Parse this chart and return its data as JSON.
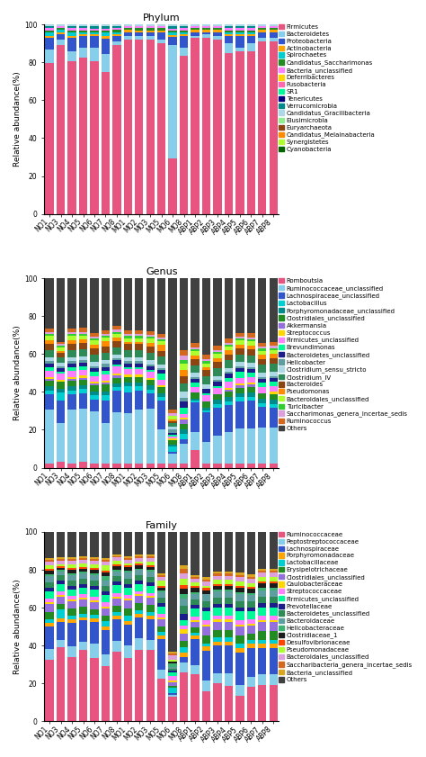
{
  "x_labels": [
    "NO1",
    "NO3",
    "NO4",
    "NO5",
    "NO6",
    "NO7",
    "NO8",
    "MO1",
    "MO2",
    "MO3",
    "MO5",
    "MO6",
    "MO8",
    "ABP1",
    "ABP2",
    "ABP3",
    "ABP4",
    "ABP5",
    "ABP6",
    "ABP7",
    "ABP8"
  ],
  "phylum": {
    "title": "Phylum",
    "categories": [
      "Firmicutes",
      "Bacteroidetes",
      "Proteobacteria",
      "Actinobacteria",
      "Spirochaetes",
      "Candidatus_Saccharimonas",
      "Bacteria_unclassified",
      "Deferribacteres",
      "Fusobacteria",
      "SR1",
      "Tenericutes",
      "Verrucomicrobia",
      "Candidatus_Gracilibacteria",
      "Elusimicrobia",
      "Euryarchaeota",
      "Candidatus_Melainabacteria",
      "Synergistetes",
      "Cyanobacteria"
    ],
    "colors": [
      "#E75480",
      "#87CEEB",
      "#3355CC",
      "#FFA500",
      "#00CED1",
      "#228B22",
      "#FF80FF",
      "#FFD700",
      "#FF69B4",
      "#00FA9A",
      "#000080",
      "#008B8B",
      "#ADD8E6",
      "#90EE90",
      "#8B4513",
      "#FF8C00",
      "#ADFF2F",
      "#006400"
    ],
    "data": [
      [
        78,
        89,
        80,
        81,
        78,
        72,
        89,
        92,
        91,
        91,
        89,
        27,
        82,
        93,
        93,
        92,
        84,
        84,
        85,
        91,
        91
      ],
      [
        7,
        3,
        5,
        5,
        7,
        9,
        2,
        2,
        2,
        2,
        2,
        55,
        4,
        1,
        2,
        2,
        5,
        2,
        4,
        2,
        2
      ],
      [
        6,
        3,
        7,
        6,
        6,
        8,
        3,
        2,
        2,
        2,
        4,
        4,
        6,
        2,
        1,
        2,
        4,
        6,
        4,
        3,
        3
      ],
      [
        1,
        1,
        1,
        1,
        1,
        1,
        1,
        1,
        1,
        1,
        1,
        1,
        1,
        1,
        1,
        1,
        1,
        1,
        1,
        1,
        1
      ],
      [
        2,
        1,
        2,
        1,
        1,
        2,
        1,
        0,
        0,
        0,
        0,
        1,
        1,
        0,
        0,
        0,
        1,
        1,
        1,
        0,
        0
      ],
      [
        1,
        1,
        1,
        1,
        1,
        1,
        1,
        1,
        1,
        1,
        1,
        1,
        1,
        1,
        1,
        1,
        1,
        1,
        1,
        1,
        1
      ],
      [
        1,
        1,
        1,
        1,
        1,
        1,
        1,
        1,
        1,
        1,
        1,
        1,
        1,
        1,
        1,
        1,
        1,
        1,
        1,
        1,
        1
      ],
      [
        0,
        0,
        0,
        0,
        0,
        0,
        0,
        0,
        0,
        0,
        0,
        0,
        0,
        0,
        0,
        0,
        0,
        0,
        0,
        0,
        0
      ],
      [
        0,
        0,
        0,
        0,
        0,
        0,
        0,
        0,
        0,
        0,
        0,
        0,
        0,
        0,
        0,
        0,
        0,
        0,
        0,
        0,
        0
      ],
      [
        0,
        0,
        0,
        0,
        0,
        0,
        0,
        0,
        0,
        0,
        0,
        0,
        0,
        0,
        0,
        0,
        0,
        0,
        0,
        0,
        0
      ],
      [
        0,
        0,
        0,
        0,
        0,
        0,
        0,
        0,
        0,
        0,
        0,
        0,
        0,
        0,
        0,
        0,
        0,
        0,
        0,
        0,
        0
      ],
      [
        1,
        0,
        1,
        1,
        1,
        1,
        1,
        0,
        0,
        0,
        0,
        1,
        1,
        0,
        0,
        0,
        1,
        1,
        1,
        0,
        0
      ],
      [
        1,
        1,
        1,
        1,
        1,
        1,
        1,
        1,
        1,
        1,
        1,
        1,
        1,
        1,
        1,
        1,
        1,
        1,
        1,
        1,
        1
      ],
      [
        0,
        0,
        0,
        0,
        0,
        0,
        0,
        0,
        0,
        0,
        0,
        0,
        0,
        0,
        0,
        0,
        0,
        0,
        0,
        0,
        0
      ],
      [
        0,
        0,
        0,
        0,
        0,
        0,
        0,
        0,
        0,
        0,
        0,
        0,
        0,
        0,
        0,
        0,
        0,
        0,
        0,
        0,
        0
      ],
      [
        0,
        0,
        0,
        0,
        0,
        0,
        0,
        0,
        0,
        0,
        0,
        0,
        0,
        0,
        0,
        0,
        0,
        0,
        0,
        0,
        0
      ],
      [
        0,
        0,
        0,
        0,
        0,
        0,
        0,
        0,
        0,
        0,
        0,
        0,
        0,
        0,
        0,
        0,
        0,
        0,
        0,
        0,
        0
      ],
      [
        0,
        0,
        0,
        0,
        0,
        0,
        0,
        0,
        0,
        0,
        0,
        0,
        0,
        0,
        0,
        0,
        0,
        0,
        0,
        0,
        0
      ]
    ]
  },
  "genus": {
    "title": "Genus",
    "categories": [
      "Romboutsia",
      "Ruminococcaceae_unclassified",
      "Lachnospiraceae_unclassified",
      "Lactobacillus",
      "Porphyromonadaceae_unclassified",
      "Clostridiales_unclassified",
      "Akkermansia",
      "Streptococcus",
      "Firmicutes_unclassified",
      "Brevundimonas",
      "Bacteroidetes_unclassified",
      "Helicobacter",
      "Clostridium_sensu_stricto",
      "Clostridium_IV",
      "Bacteroides",
      "Pseudomonas",
      "Bacteroidales_unclassified",
      "Turicibacter",
      "Saccharimonas_genera_incertae_sedis",
      "Ruminococcus",
      "Others"
    ],
    "colors": [
      "#E75480",
      "#87CEEB",
      "#3355CC",
      "#00CED1",
      "#008B8B",
      "#228B22",
      "#9370DB",
      "#FFD700",
      "#FF80FF",
      "#00FA9A",
      "#1C1C8A",
      "#5F9EA0",
      "#ADD8E6",
      "#2E8B57",
      "#8B4513",
      "#FF8C00",
      "#ADFF2F",
      "#32CD32",
      "#DDA0DD",
      "#D2691E",
      "#404040"
    ],
    "data": [
      [
        2,
        3,
        2,
        3,
        2,
        2,
        2,
        2,
        2,
        2,
        2,
        2,
        2,
        9,
        2,
        2,
        2,
        2,
        2,
        2,
        2
      ],
      [
        28,
        21,
        28,
        28,
        27,
        22,
        27,
        26,
        28,
        28,
        18,
        5,
        10,
        9,
        10,
        14,
        16,
        18,
        18,
        18,
        18
      ],
      [
        8,
        12,
        8,
        8,
        6,
        12,
        11,
        11,
        10,
        8,
        15,
        1,
        2,
        15,
        14,
        14,
        14,
        14,
        14,
        10,
        10
      ],
      [
        2,
        4,
        2,
        2,
        2,
        3,
        2,
        3,
        2,
        2,
        2,
        3,
        3,
        1,
        1,
        2,
        2,
        2,
        2,
        2,
        2
      ],
      [
        2,
        2,
        2,
        2,
        2,
        2,
        2,
        2,
        2,
        2,
        2,
        1,
        2,
        1,
        1,
        2,
        2,
        2,
        2,
        2,
        2
      ],
      [
        3,
        4,
        3,
        3,
        3,
        4,
        3,
        3,
        3,
        3,
        3,
        2,
        3,
        3,
        3,
        3,
        3,
        3,
        3,
        3,
        3
      ],
      [
        1,
        0,
        1,
        1,
        1,
        1,
        1,
        0,
        0,
        0,
        0,
        0,
        2,
        0,
        0,
        0,
        1,
        1,
        1,
        0,
        0
      ],
      [
        1,
        1,
        1,
        1,
        1,
        1,
        1,
        1,
        1,
        1,
        1,
        1,
        1,
        0,
        0,
        0,
        1,
        1,
        1,
        0,
        1
      ],
      [
        3,
        3,
        3,
        3,
        3,
        3,
        4,
        3,
        3,
        3,
        3,
        1,
        2,
        3,
        3,
        3,
        3,
        3,
        3,
        3,
        3
      ],
      [
        2,
        1,
        2,
        2,
        2,
        2,
        1,
        1,
        1,
        1,
        3,
        1,
        3,
        2,
        1,
        1,
        2,
        3,
        2,
        2,
        2
      ],
      [
        2,
        2,
        2,
        2,
        2,
        2,
        2,
        2,
        2,
        2,
        2,
        1,
        3,
        2,
        2,
        2,
        2,
        2,
        2,
        2,
        2
      ],
      [
        1,
        1,
        1,
        1,
        1,
        2,
        1,
        1,
        1,
        1,
        1,
        2,
        2,
        1,
        0,
        1,
        1,
        1,
        1,
        1,
        1
      ],
      [
        2,
        2,
        2,
        2,
        2,
        2,
        2,
        2,
        2,
        2,
        2,
        1,
        3,
        2,
        2,
        2,
        2,
        2,
        2,
        2,
        2
      ],
      [
        4,
        3,
        4,
        4,
        4,
        4,
        4,
        4,
        4,
        4,
        4,
        2,
        4,
        4,
        4,
        4,
        4,
        4,
        4,
        4,
        4
      ],
      [
        3,
        2,
        3,
        3,
        3,
        3,
        3,
        3,
        3,
        3,
        3,
        1,
        4,
        3,
        3,
        3,
        3,
        3,
        3,
        3,
        3
      ],
      [
        2,
        1,
        2,
        2,
        2,
        3,
        2,
        1,
        1,
        2,
        3,
        1,
        3,
        2,
        1,
        2,
        2,
        2,
        2,
        2,
        2
      ],
      [
        2,
        2,
        2,
        2,
        2,
        2,
        2,
        2,
        2,
        2,
        2,
        2,
        3,
        2,
        2,
        2,
        2,
        2,
        2,
        2,
        2
      ],
      [
        1,
        1,
        1,
        1,
        1,
        1,
        1,
        1,
        1,
        1,
        1,
        0,
        2,
        1,
        1,
        1,
        1,
        1,
        1,
        1,
        1
      ],
      [
        1,
        1,
        1,
        1,
        1,
        1,
        1,
        1,
        1,
        1,
        1,
        1,
        2,
        1,
        1,
        1,
        1,
        1,
        1,
        1,
        1
      ],
      [
        2,
        1,
        2,
        2,
        2,
        2,
        2,
        2,
        2,
        2,
        2,
        2,
        3,
        2,
        2,
        2,
        2,
        2,
        2,
        2,
        2
      ],
      [
        26,
        34,
        26,
        26,
        28,
        28,
        25,
        27,
        27,
        27,
        29,
        68,
        36,
        33,
        36,
        34,
        31,
        28,
        28,
        32,
        32
      ]
    ]
  },
  "family": {
    "title": "Family",
    "categories": [
      "Ruminococcaceae",
      "Peptostreptococcaceae",
      "Lachnospiraceae",
      "Porphyromonadaceae",
      "Lactobacillaceae",
      "Erysipelotrichaceae",
      "Clostridiales_unclassified",
      "Caulobacteraceae",
      "Streptococcaceae",
      "Firmicutes_unclassified",
      "Prevotellaceae",
      "Bacteroidetes_unclassified",
      "Bacteroidaceae",
      "Helicobacteraceae",
      "Clostridiaceae_1",
      "Desulfovibrionaceae",
      "Pseudomonadaceae",
      "Bacteroidales_unclassified",
      "Saccharibacteria_genera_incertae_sedis",
      "Bacteria_unclassified",
      "Others"
    ],
    "colors": [
      "#E75480",
      "#87CEEB",
      "#3355CC",
      "#FFA500",
      "#00CED1",
      "#228B22",
      "#9370DB",
      "#FFD700",
      "#FF80FF",
      "#00FA9A",
      "#1C1C8A",
      "#2E8B57",
      "#5F9EA0",
      "#3CB371",
      "#1C1C1C",
      "#FF4500",
      "#ADFF2F",
      "#DDA0DD",
      "#D2691E",
      "#DAA520",
      "#404040"
    ],
    "data": [
      [
        33,
        41,
        36,
        41,
        35,
        30,
        41,
        34,
        41,
        41,
        24,
        13,
        25,
        25,
        14,
        19,
        18,
        12,
        17,
        17,
        17
      ],
      [
        6,
        4,
        6,
        5,
        8,
        6,
        6,
        7,
        7,
        6,
        5,
        1,
        5,
        5,
        5,
        5,
        6,
        5,
        5,
        5,
        5
      ],
      [
        12,
        10,
        13,
        12,
        12,
        13,
        13,
        11,
        12,
        12,
        17,
        1,
        3,
        14,
        14,
        14,
        14,
        15,
        14,
        12,
        12
      ],
      [
        2,
        2,
        2,
        2,
        2,
        2,
        2,
        2,
        2,
        2,
        2,
        0,
        2,
        2,
        2,
        2,
        2,
        2,
        2,
        2,
        2
      ],
      [
        2,
        5,
        2,
        2,
        2,
        3,
        2,
        3,
        2,
        2,
        2,
        3,
        3,
        1,
        1,
        2,
        2,
        2,
        2,
        2,
        2
      ],
      [
        4,
        3,
        4,
        4,
        3,
        3,
        4,
        4,
        4,
        4,
        3,
        1,
        3,
        3,
        4,
        4,
        4,
        4,
        3,
        4,
        4
      ],
      [
        4,
        4,
        4,
        4,
        4,
        4,
        4,
        4,
        4,
        4,
        4,
        2,
        4,
        3,
        4,
        4,
        4,
        4,
        4,
        4,
        4
      ],
      [
        1,
        1,
        1,
        1,
        1,
        1,
        1,
        1,
        1,
        1,
        1,
        1,
        2,
        1,
        1,
        1,
        1,
        1,
        1,
        1,
        1
      ],
      [
        2,
        2,
        2,
        2,
        2,
        2,
        2,
        2,
        2,
        2,
        2,
        2,
        2,
        2,
        2,
        2,
        2,
        2,
        2,
        2,
        2
      ],
      [
        4,
        4,
        4,
        4,
        4,
        4,
        5,
        4,
        4,
        4,
        4,
        2,
        3,
        4,
        4,
        4,
        4,
        4,
        4,
        4,
        4
      ],
      [
        2,
        2,
        2,
        2,
        2,
        2,
        2,
        2,
        2,
        2,
        2,
        1,
        3,
        2,
        2,
        2,
        2,
        2,
        2,
        2,
        2
      ],
      [
        3,
        3,
        3,
        3,
        3,
        3,
        3,
        3,
        3,
        3,
        3,
        1,
        4,
        3,
        3,
        3,
        3,
        3,
        3,
        3,
        3
      ],
      [
        3,
        2,
        3,
        3,
        3,
        3,
        3,
        3,
        3,
        3,
        3,
        1,
        4,
        3,
        3,
        3,
        3,
        3,
        3,
        3,
        3
      ],
      [
        1,
        1,
        1,
        1,
        1,
        2,
        1,
        1,
        1,
        1,
        1,
        2,
        2,
        1,
        0,
        1,
        1,
        1,
        1,
        1,
        1
      ],
      [
        2,
        1,
        2,
        2,
        2,
        2,
        2,
        2,
        2,
        2,
        2,
        1,
        3,
        2,
        2,
        2,
        2,
        2,
        2,
        2,
        2
      ],
      [
        1,
        1,
        1,
        1,
        1,
        1,
        1,
        1,
        1,
        1,
        1,
        0,
        2,
        1,
        1,
        1,
        1,
        1,
        1,
        1,
        1
      ],
      [
        2,
        1,
        2,
        2,
        2,
        3,
        2,
        1,
        1,
        2,
        3,
        1,
        3,
        2,
        1,
        2,
        2,
        2,
        2,
        2,
        2
      ],
      [
        2,
        2,
        2,
        2,
        2,
        2,
        2,
        2,
        2,
        2,
        2,
        2,
        3,
        2,
        2,
        2,
        2,
        2,
        2,
        2,
        2
      ],
      [
        1,
        1,
        1,
        1,
        1,
        1,
        1,
        1,
        1,
        1,
        1,
        1,
        2,
        1,
        1,
        1,
        1,
        1,
        1,
        1,
        1
      ],
      [
        1,
        1,
        1,
        1,
        1,
        1,
        1,
        1,
        1,
        1,
        1,
        1,
        2,
        1,
        1,
        1,
        1,
        1,
        1,
        1,
        1
      ],
      [
        14,
        14,
        14,
        14,
        14,
        14,
        13,
        13,
        13,
        13,
        23,
        64,
        17,
        23,
        21,
        20,
        20,
        19,
        21,
        17,
        17
      ]
    ]
  },
  "ylabel": "Relative abundance(%)",
  "background_color": "#ffffff",
  "tick_fontsize": 5.5,
  "legend_fontsize": 5.0,
  "title_fontsize": 8,
  "label_fontsize": 6.5
}
